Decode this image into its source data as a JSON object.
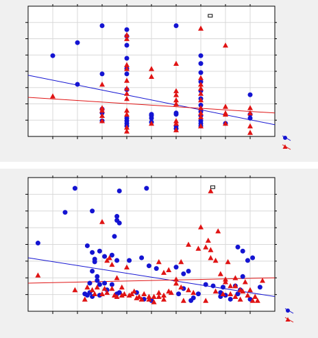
{
  "colors": {
    "background": "#f0f0f0",
    "plot_background": "#ffffff",
    "grid": "#d8d8d8",
    "series_circle": "#1414d2",
    "series_triangle": "#e01414"
  },
  "chart_data": [
    {
      "type": "scatter",
      "grid": true,
      "legend": "bottom-right",
      "xlim": [
        0,
        100
      ],
      "ylim": [
        0,
        100
      ],
      "series": [
        {
          "marker": "circle",
          "color": "#1414d2",
          "points": [
            [
              10,
              62
            ],
            [
              20,
              72
            ],
            [
              30,
              85
            ],
            [
              40,
              82
            ],
            [
              40,
              77
            ],
            [
              40,
              70
            ],
            [
              40,
              60
            ],
            [
              40,
              52
            ],
            [
              40,
              48
            ],
            [
              60,
              85
            ],
            [
              70,
              62
            ],
            [
              70,
              56
            ],
            [
              70,
              49
            ],
            [
              70,
              42
            ],
            [
              30,
              48
            ],
            [
              20,
              40
            ],
            [
              40,
              36
            ],
            [
              30,
              21
            ],
            [
              30,
              18
            ],
            [
              30,
              12
            ],
            [
              40,
              14
            ],
            [
              40,
              12
            ],
            [
              40,
              10
            ],
            [
              40,
              8
            ],
            [
              50,
              17
            ],
            [
              50,
              16
            ],
            [
              50,
              14
            ],
            [
              50,
              11
            ],
            [
              60,
              8
            ],
            [
              60,
              6
            ],
            [
              60,
              17
            ],
            [
              60,
              18
            ],
            [
              70,
              35
            ],
            [
              70,
              29
            ],
            [
              70,
              24
            ],
            [
              70,
              19
            ],
            [
              70,
              16
            ],
            [
              70,
              12
            ],
            [
              70,
              10
            ],
            [
              70,
              8
            ],
            [
              80,
              10
            ],
            [
              90,
              17
            ],
            [
              90,
              14
            ],
            [
              90,
              32
            ]
          ]
        },
        {
          "marker": "triangle",
          "color": "#e01414",
          "points": [
            [
              10,
              31
            ],
            [
              30,
              40
            ],
            [
              40,
              78
            ],
            [
              40,
              75
            ],
            [
              40,
              55
            ],
            [
              40,
              52
            ],
            [
              40,
              43
            ],
            [
              40,
              37
            ],
            [
              40,
              33
            ],
            [
              40,
              29
            ],
            [
              50,
              52
            ],
            [
              50,
              46
            ],
            [
              60,
              56
            ],
            [
              60,
              35
            ],
            [
              60,
              32
            ],
            [
              60,
              28
            ],
            [
              60,
              25
            ],
            [
              60,
              12
            ],
            [
              60,
              10
            ],
            [
              60,
              5
            ],
            [
              70,
              83
            ],
            [
              70,
              45
            ],
            [
              70,
              40
            ],
            [
              70,
              37
            ],
            [
              70,
              33
            ],
            [
              70,
              28
            ],
            [
              70,
              22
            ],
            [
              70,
              18
            ],
            [
              70,
              15
            ],
            [
              70,
              8
            ],
            [
              80,
              70
            ],
            [
              80,
              23
            ],
            [
              80,
              18
            ],
            [
              80,
              17
            ],
            [
              80,
              10
            ],
            [
              90,
              22
            ],
            [
              90,
              18
            ],
            [
              90,
              8
            ],
            [
              90,
              3
            ],
            [
              30,
              22
            ],
            [
              30,
              20
            ],
            [
              30,
              16
            ],
            [
              30,
              12
            ],
            [
              40,
              20
            ],
            [
              40,
              17
            ],
            [
              40,
              7
            ],
            [
              40,
              4
            ],
            [
              50,
              10
            ]
          ]
        }
      ],
      "trendlines": [
        {
          "color": "#1414d2",
          "y_at_xmin": 47,
          "y_at_xmax": 9
        },
        {
          "color": "#e01414",
          "y_at_xmin": 30,
          "y_at_xmax": 18
        }
      ]
    },
    {
      "type": "scatter",
      "grid": true,
      "legend": "bottom-right",
      "xlim": [
        0,
        100
      ],
      "ylim": [
        0,
        100
      ],
      "series": [
        {
          "marker": "circle",
          "color": "#1414d2",
          "points": [
            [
              4,
              51
            ],
            [
              19,
              92
            ],
            [
              15,
              74
            ],
            [
              26,
              75
            ],
            [
              37,
              90
            ],
            [
              48,
              92
            ],
            [
              36,
              71
            ],
            [
              37,
              66
            ],
            [
              36,
              68
            ],
            [
              35,
              56
            ],
            [
              24,
              49
            ],
            [
              26,
              44
            ],
            [
              27,
              39
            ],
            [
              27,
              37
            ],
            [
              29,
              45
            ],
            [
              34,
              42
            ],
            [
              41,
              38
            ],
            [
              36,
              38
            ],
            [
              31,
              41
            ],
            [
              46,
              40
            ],
            [
              49,
              34
            ],
            [
              52,
              32
            ],
            [
              60,
              33
            ],
            [
              63,
              28
            ],
            [
              65,
              30
            ],
            [
              26,
              30
            ],
            [
              25,
              21
            ],
            [
              29,
              20
            ],
            [
              31,
              21
            ],
            [
              32,
              16
            ],
            [
              28,
              23
            ],
            [
              28,
              26
            ],
            [
              36,
              13
            ],
            [
              23,
              13
            ],
            [
              25,
              14
            ],
            [
              26,
              11
            ],
            [
              24,
              12
            ],
            [
              29,
              12
            ],
            [
              34,
              20
            ],
            [
              37,
              14
            ],
            [
              44,
              14
            ],
            [
              47,
              9
            ],
            [
              50,
              8
            ],
            [
              61,
              13
            ],
            [
              63,
              17
            ],
            [
              66,
              8
            ],
            [
              67,
              10
            ],
            [
              69,
              13
            ],
            [
              72,
              20
            ],
            [
              75,
              19
            ],
            [
              78,
              11
            ],
            [
              78,
              14
            ],
            [
              79,
              18
            ],
            [
              80,
              12
            ],
            [
              82,
              9
            ],
            [
              84,
              19
            ],
            [
              85,
              13
            ],
            [
              86,
              16
            ],
            [
              87,
              26
            ],
            [
              87,
              45
            ],
            [
              89,
              38
            ],
            [
              91,
              40
            ],
            [
              94,
              18
            ],
            [
              90,
              9
            ],
            [
              85,
              48
            ]
          ]
        },
        {
          "marker": "triangle",
          "color": "#e01414",
          "points": [
            [
              4,
              27
            ],
            [
              30,
              67
            ],
            [
              32,
              38
            ],
            [
              34,
              35
            ],
            [
              36,
              25
            ],
            [
              33,
              40
            ],
            [
              38,
              18
            ],
            [
              39,
              13
            ],
            [
              41,
              12
            ],
            [
              43,
              15
            ],
            [
              44,
              10
            ],
            [
              46,
              9
            ],
            [
              49,
              11
            ],
            [
              51,
              7
            ],
            [
              53,
              11
            ],
            [
              55,
              9
            ],
            [
              57,
              15
            ],
            [
              58,
              14
            ],
            [
              60,
              21
            ],
            [
              62,
              18
            ],
            [
              63,
              8
            ],
            [
              65,
              16
            ],
            [
              67,
              14
            ],
            [
              19,
              16
            ],
            [
              23,
              9
            ],
            [
              24,
              18
            ],
            [
              26,
              16
            ],
            [
              27,
              13
            ],
            [
              28,
              18
            ],
            [
              31,
              17
            ],
            [
              34,
              17
            ],
            [
              35,
              12
            ],
            [
              36,
              11
            ],
            [
              65,
              50
            ],
            [
              69,
              47
            ],
            [
              72,
              48
            ],
            [
              74,
              46
            ],
            [
              77,
              60
            ],
            [
              70,
              63
            ],
            [
              73,
              53
            ],
            [
              74,
              40
            ],
            [
              81,
              37
            ],
            [
              80,
              22
            ],
            [
              82,
              19
            ],
            [
              84,
              25
            ],
            [
              86,
              16
            ],
            [
              88,
              22
            ],
            [
              90,
              16
            ],
            [
              92,
              11
            ],
            [
              93,
              8
            ],
            [
              95,
              23
            ],
            [
              72,
              8
            ],
            [
              76,
              15
            ],
            [
              79,
              13
            ],
            [
              82,
              13
            ],
            [
              84,
              11
            ],
            [
              86,
              9
            ],
            [
              87,
              15
            ],
            [
              89,
              12
            ],
            [
              91,
              8
            ],
            [
              62,
              37
            ],
            [
              76,
              38
            ],
            [
              78,
              28
            ],
            [
              80,
              24
            ],
            [
              53,
              37
            ],
            [
              55,
              29
            ],
            [
              57,
              31
            ],
            [
              60,
              24
            ],
            [
              30,
              13
            ],
            [
              32,
              14
            ],
            [
              38,
              12
            ],
            [
              42,
              13
            ],
            [
              45,
              11
            ],
            [
              47,
              13
            ],
            [
              49,
              9
            ],
            [
              51,
              11
            ],
            [
              53,
              14
            ],
            [
              55,
              12
            ],
            [
              74,
              90
            ],
            [
              40,
              33
            ],
            [
              84,
              19
            ]
          ]
        }
      ],
      "trendlines": [
        {
          "color": "#1414d2",
          "y_at_xmin": 40,
          "y_at_xmax": 11
        },
        {
          "color": "#e01414",
          "y_at_xmin": 21,
          "y_at_xmax": 25
        }
      ]
    }
  ]
}
